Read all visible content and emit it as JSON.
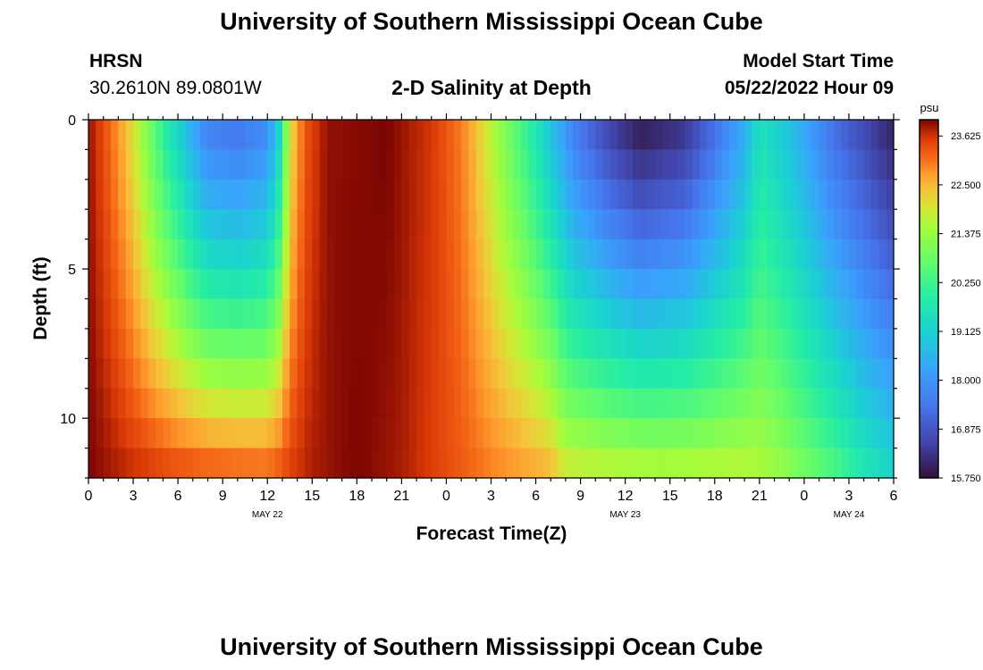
{
  "header": {
    "title": "University of Southern Mississippi Ocean Cube",
    "station_name": "HRSN",
    "coordinates": "30.2610N  89.0801W",
    "plot_title": "2-D Salinity at Depth",
    "model_label": "Model Start Time",
    "model_time": "05/22/2022 Hour 09"
  },
  "footer": {
    "title": "University of Southern Mississippi Ocean Cube"
  },
  "chart_data": {
    "type": "heatmap",
    "title": "2-D Salinity at Depth",
    "xlabel": "Forecast Time(Z)",
    "ylabel": "Depth (ft)",
    "x_ticks": [
      "0",
      "3",
      "6",
      "9",
      "12",
      "15",
      "18",
      "21",
      "0",
      "3",
      "6",
      "9",
      "12",
      "15",
      "18",
      "21",
      "0",
      "3",
      "6"
    ],
    "x_range_hours": [
      0,
      54
    ],
    "date_labels": [
      {
        "hour": 12,
        "text": "MAY 22"
      },
      {
        "hour": 36,
        "text": "MAY 23"
      },
      {
        "hour": 51,
        "text": "MAY 24"
      }
    ],
    "y_ticks": [
      "0",
      "5",
      "10"
    ],
    "y_range_ft": [
      0,
      12
    ],
    "colorbar": {
      "unit": "psu",
      "labels": [
        "23.625",
        "22.500",
        "21.375",
        "20.250",
        "19.125",
        "18.000",
        "16.875",
        "15.750"
      ],
      "range": [
        15.75,
        24.0
      ]
    },
    "depth_levels_ft": [
      0.5,
      1.5,
      2.5,
      3.5,
      4.5,
      5.5,
      6.5,
      7.5,
      8.5,
      9.5,
      10.5,
      11.5
    ],
    "surface_salinity_profile": [
      {
        "h": 0,
        "v": 23.9
      },
      {
        "h": 1,
        "v": 23.4
      },
      {
        "h": 2,
        "v": 22.8
      },
      {
        "h": 3,
        "v": 22.0
      },
      {
        "h": 4,
        "v": 21.0
      },
      {
        "h": 5,
        "v": 20.0
      },
      {
        "h": 6,
        "v": 19.2
      },
      {
        "h": 7,
        "v": 18.3
      },
      {
        "h": 8,
        "v": 17.6
      },
      {
        "h": 10,
        "v": 17.4
      },
      {
        "h": 12,
        "v": 17.8
      },
      {
        "h": 12.8,
        "v": 19.2
      },
      {
        "h": 13.5,
        "v": 22.0
      },
      {
        "h": 14.5,
        "v": 23.3
      },
      {
        "h": 16,
        "v": 23.9
      },
      {
        "h": 20,
        "v": 24.0
      },
      {
        "h": 23,
        "v": 23.6
      },
      {
        "h": 25,
        "v": 23.0
      },
      {
        "h": 26,
        "v": 22.4
      },
      {
        "h": 27,
        "v": 21.7
      },
      {
        "h": 28,
        "v": 21.0
      },
      {
        "h": 29.5,
        "v": 20.0
      },
      {
        "h": 31,
        "v": 18.8
      },
      {
        "h": 32.5,
        "v": 17.6
      },
      {
        "h": 35,
        "v": 16.5
      },
      {
        "h": 37,
        "v": 15.9
      },
      {
        "h": 40,
        "v": 16.3
      },
      {
        "h": 42,
        "v": 17.3
      },
      {
        "h": 44,
        "v": 18.4
      },
      {
        "h": 45,
        "v": 19.5
      },
      {
        "h": 47,
        "v": 18.8
      },
      {
        "h": 50,
        "v": 17.3
      },
      {
        "h": 54,
        "v": 16.0
      }
    ],
    "bottom_salinity_profile": [
      {
        "h": 0,
        "v": 24.0
      },
      {
        "h": 3,
        "v": 23.7
      },
      {
        "h": 6,
        "v": 23.5
      },
      {
        "h": 9,
        "v": 23.4
      },
      {
        "h": 12,
        "v": 23.3
      },
      {
        "h": 15,
        "v": 23.8
      },
      {
        "h": 18,
        "v": 24.0
      },
      {
        "h": 21,
        "v": 23.8
      },
      {
        "h": 24,
        "v": 23.4
      },
      {
        "h": 27,
        "v": 23.0
      },
      {
        "h": 31,
        "v": 22.6
      },
      {
        "h": 32,
        "v": 22.0
      },
      {
        "h": 35,
        "v": 21.9
      },
      {
        "h": 38,
        "v": 21.8
      },
      {
        "h": 41,
        "v": 21.8
      },
      {
        "h": 44,
        "v": 21.8
      },
      {
        "h": 46,
        "v": 21.5
      },
      {
        "h": 48,
        "v": 21.0
      },
      {
        "h": 50,
        "v": 20.5
      },
      {
        "h": 52,
        "v": 19.8
      },
      {
        "h": 54,
        "v": 19.3
      }
    ]
  }
}
